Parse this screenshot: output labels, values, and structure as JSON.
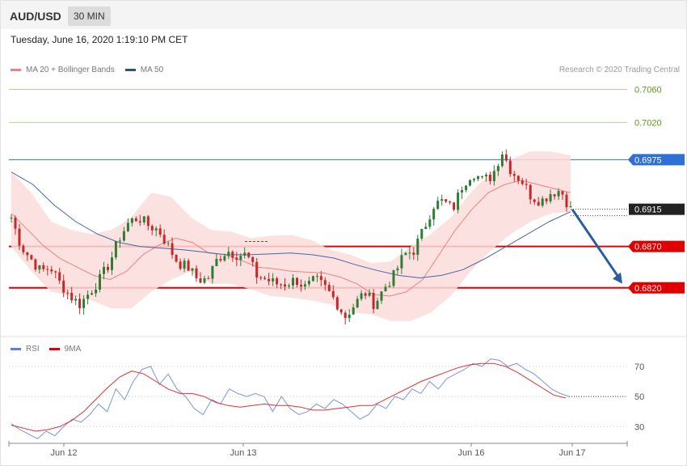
{
  "header": {
    "symbol": "AUD/USD",
    "timeframe": "30 MIN",
    "datetime": "Tuesday, June 16, 2020 1:19:10 PM CET"
  },
  "legend": {
    "ma20": "MA 20 + Bollinger Bands",
    "ma50": "MA 50",
    "copyright": "Research © 2020 Trading Central"
  },
  "rsi_legend": {
    "rsi": "RSI",
    "ma9": "9MA"
  },
  "colors": {
    "ma20": "#f08080",
    "ma50": "#3a5a9c",
    "bollinger_fill": "#fcdcdc",
    "candle_up": "#2e7d32",
    "candle_down": "#c62828",
    "resistance": "#8bc34a",
    "pivot": "#2f6fd6",
    "support": "#e00000",
    "arrow": "#2b5d9e",
    "rsi": "#7a95d8",
    "rsi_ma": "#e03030"
  },
  "chart_data": [
    {
      "type": "candlestick",
      "x_labels": [
        "Jun 12",
        "Jun 13",
        "Jun 16",
        "Jun 17"
      ],
      "ylim": [
        0.6765,
        0.708
      ],
      "levels": [
        {
          "value": 0.706,
          "label": "0.7060",
          "kind": "resistance"
        },
        {
          "value": 0.702,
          "label": "0.7020",
          "kind": "resistance"
        },
        {
          "value": 0.6975,
          "label": "0.6975",
          "kind": "pivot"
        },
        {
          "value": 0.6915,
          "label": "0.6915",
          "kind": "last"
        },
        {
          "value": 0.687,
          "label": "0.6870",
          "kind": "support"
        },
        {
          "value": 0.682,
          "label": "0.6820",
          "kind": "support"
        }
      ],
      "anchor_closes": [
        0.6905,
        0.687,
        0.6855,
        0.684,
        0.6845,
        0.6825,
        0.681,
        0.68,
        0.6815,
        0.683,
        0.685,
        0.688,
        0.69,
        0.6905,
        0.6895,
        0.689,
        0.687,
        0.685,
        0.6845,
        0.683,
        0.683,
        0.6855,
        0.6865,
        0.686,
        0.686,
        0.6835,
        0.683,
        0.6825,
        0.6825,
        0.683,
        0.682,
        0.683,
        0.682,
        0.6805,
        0.6785,
        0.68,
        0.6815,
        0.68,
        0.682,
        0.6835,
        0.686,
        0.6865,
        0.689,
        0.692,
        0.6925,
        0.6915,
        0.6945,
        0.696,
        0.695,
        0.6955,
        0.6985,
        0.696,
        0.695,
        0.693,
        0.6925,
        0.6935,
        0.6938,
        0.6915
      ],
      "ma20": [
        0.691,
        0.689,
        0.687,
        0.6855,
        0.6845,
        0.6835,
        0.683,
        0.684,
        0.686,
        0.6872,
        0.688,
        0.6875,
        0.6862,
        0.686,
        0.6853,
        0.6845,
        0.6843,
        0.684,
        0.6839,
        0.6838,
        0.6833,
        0.6825,
        0.6812,
        0.681,
        0.6815,
        0.683,
        0.686,
        0.689,
        0.6915,
        0.6935,
        0.6945,
        0.695,
        0.6945,
        0.694,
        0.6935
      ],
      "ma50": [
        0.696,
        0.6945,
        0.692,
        0.69,
        0.6885,
        0.6875,
        0.687,
        0.6868,
        0.6866,
        0.6863,
        0.686,
        0.686,
        0.6861,
        0.6862,
        0.686,
        0.6856,
        0.6848,
        0.6841,
        0.6835,
        0.6832,
        0.6835,
        0.6842,
        0.6855,
        0.687,
        0.6885,
        0.69,
        0.6912
      ],
      "bb_upper": [
        0.696,
        0.6935,
        0.69,
        0.689,
        0.6885,
        0.689,
        0.6905,
        0.6935,
        0.693,
        0.6905,
        0.689,
        0.6888,
        0.688,
        0.6883,
        0.6884,
        0.6878,
        0.6866,
        0.686,
        0.685,
        0.6852,
        0.687,
        0.6885,
        0.6905,
        0.6935,
        0.696,
        0.6975,
        0.6985,
        0.6985,
        0.698
      ],
      "bb_lower": [
        0.687,
        0.684,
        0.6815,
        0.681,
        0.6805,
        0.6795,
        0.6795,
        0.6815,
        0.683,
        0.684,
        0.6825,
        0.6825,
        0.6818,
        0.681,
        0.6808,
        0.6805,
        0.68,
        0.679,
        0.6788,
        0.678,
        0.678,
        0.679,
        0.681,
        0.684,
        0.6865,
        0.6885,
        0.69,
        0.691,
        0.6912
      ]
    },
    {
      "type": "line",
      "title": "RSI",
      "ylim": [
        20,
        78
      ],
      "y_ticks": [
        30,
        50,
        70
      ],
      "series": [
        {
          "name": "RSI",
          "values": [
            32,
            28,
            25,
            22,
            27,
            24,
            30,
            35,
            33,
            38,
            45,
            40,
            55,
            48,
            60,
            68,
            70,
            58,
            65,
            55,
            50,
            42,
            38,
            48,
            45,
            55,
            52,
            50,
            52,
            50,
            40,
            50,
            42,
            38,
            40,
            45,
            42,
            48,
            45,
            40,
            35,
            38,
            45,
            42,
            50,
            48,
            55,
            52,
            60,
            55,
            62,
            65,
            68,
            72,
            70,
            75,
            74,
            70,
            72,
            68,
            65,
            60,
            55,
            52,
            50
          ]
        },
        {
          "name": "9MA",
          "values": [
            31,
            29,
            27,
            28,
            30,
            34,
            40,
            48,
            56,
            63,
            67,
            65,
            60,
            55,
            52,
            52,
            50,
            46,
            44,
            43,
            44,
            45,
            44,
            44,
            43,
            41,
            41,
            42,
            43,
            44,
            44,
            48,
            52,
            56,
            60,
            63,
            66,
            69,
            71,
            72,
            72,
            70,
            66,
            61,
            56,
            51,
            49
          ]
        }
      ]
    }
  ]
}
